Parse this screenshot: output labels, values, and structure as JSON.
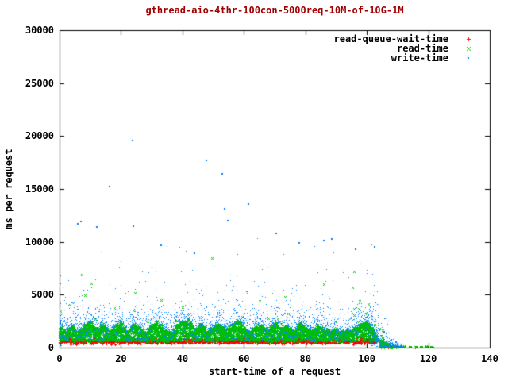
{
  "window": {
    "background": "#ffffff"
  },
  "chart_data": {
    "type": "scatter",
    "title": "gthread-aio-4thr-100con-5000req-10M-of-10G-1M",
    "title_color": "#a00000",
    "xlabel": "start-time of a request",
    "ylabel": "ms per request",
    "xlim": [
      0,
      140
    ],
    "ylim": [
      0,
      30000
    ],
    "x_ticks": [
      0,
      20,
      40,
      60,
      80,
      100,
      120,
      140
    ],
    "y_ticks": [
      0,
      5000,
      10000,
      15000,
      20000,
      25000,
      30000
    ],
    "axis_color": "#000000",
    "grid": "off",
    "tick_style": "inward-mirrored",
    "legend_position": "top-right-inside",
    "series": [
      {
        "name": "read-queue-wait-time",
        "color": "#ff0000",
        "marker": "plus"
      },
      {
        "name": "read-time",
        "color": "#00c000",
        "marker": "cross"
      },
      {
        "name": "write-time",
        "color": "#0080ff",
        "marker": "dot"
      }
    ],
    "band_envelope": {
      "x": [
        0,
        2,
        4,
        6,
        8,
        10,
        12,
        14,
        16,
        18,
        20,
        22,
        24,
        26,
        28,
        30,
        32,
        34,
        36,
        38,
        40,
        42,
        44,
        46,
        48,
        50,
        52,
        54,
        56,
        58,
        60,
        62,
        64,
        66,
        68,
        70,
        72,
        74,
        76,
        78,
        80,
        82,
        84,
        86,
        88,
        90,
        92,
        94,
        96,
        98,
        100,
        102,
        104
      ],
      "read_time_top_ms": [
        2000,
        1500,
        2200,
        1450,
        2100,
        2400,
        1650,
        2300,
        1550,
        2000,
        2500,
        1450,
        2250,
        1850,
        1350,
        2150,
        2500,
        1750,
        1300,
        2050,
        2450,
        2600,
        1650,
        2250,
        1500,
        1950,
        2350,
        1600,
        2150,
        2500,
        1850,
        1400,
        2250,
        2050,
        1550,
        2400,
        1750,
        2150,
        1500,
        2300,
        1950,
        1500,
        2200,
        1700,
        1500,
        1750,
        1450,
        1650,
        1850,
        2150,
        2400,
        1800,
        500
      ],
      "band_bottom_ms": 650
    },
    "outliers": {
      "write_time": [
        [
          5.9,
          11700
        ],
        [
          7.0,
          11900
        ],
        [
          12.1,
          11400
        ],
        [
          16.3,
          15200
        ],
        [
          23.8,
          19600
        ],
        [
          24.0,
          11500
        ],
        [
          33.0,
          9700
        ],
        [
          44.0,
          8900
        ],
        [
          47.9,
          17700
        ],
        [
          53.0,
          16400
        ],
        [
          53.8,
          13100
        ],
        [
          54.8,
          12000
        ],
        [
          61.5,
          13600
        ],
        [
          70.5,
          10800
        ],
        [
          78.0,
          9900
        ],
        [
          86.0,
          10100
        ],
        [
          88.5,
          10250
        ],
        [
          96.3,
          9300
        ],
        [
          102.5,
          9500
        ]
      ],
      "read_time": [
        [
          8.3,
          4950
        ],
        [
          10.3,
          6075
        ],
        [
          49.6,
          8475
        ],
        [
          95.9,
          7200
        ]
      ]
    },
    "tail": {
      "baseline_ms": 80,
      "solid_from_x": 104.2,
      "solid_to_x": 112,
      "dash_to_x": 121.5,
      "write_burst_from_x": 100.5,
      "write_burst_to_x": 111.5
    },
    "generation": {
      "seed": 7,
      "col_step": 0.18,
      "x_data_end": 104,
      "green_per_col": 7,
      "red_per_col": 3,
      "blue_above_per_col": 3,
      "blue_in_band_per_col": 2
    }
  }
}
